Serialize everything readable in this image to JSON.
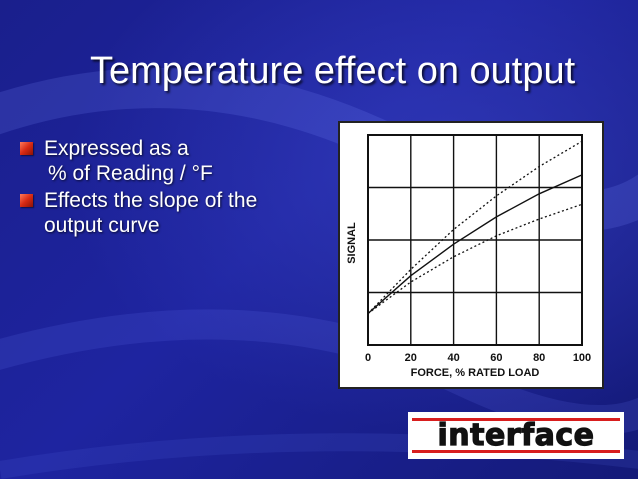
{
  "slide": {
    "title": "Temperature effect on output",
    "bullets": [
      {
        "text": "Expressed as a",
        "bullet": true
      },
      {
        "text": "% of Reading / °F",
        "bullet": false
      },
      {
        "text": "Effects the slope of the",
        "bullet": true
      },
      {
        "text": "output curve",
        "bullet": false
      }
    ],
    "logo_text": "interface",
    "colors": {
      "background": "#1a1f8c",
      "bullet": "#d82a14",
      "logo": "#d81e1e"
    }
  },
  "chart_data": {
    "type": "line",
    "xlabel": "FORCE, % RATED LOAD",
    "ylabel": "SIGNAL",
    "x_ticks": [
      "0",
      "20",
      "40",
      "60",
      "80",
      "100"
    ],
    "xlim": [
      0,
      100
    ],
    "grid": true,
    "series": [
      {
        "style": "dotted",
        "x": [
          0,
          20,
          40,
          60,
          80,
          100
        ],
        "y": [
          0.15,
          0.36,
          0.55,
          0.71,
          0.85,
          0.97
        ]
      },
      {
        "style": "solid",
        "x": [
          0,
          20,
          40,
          60,
          80,
          100
        ],
        "y": [
          0.15,
          0.33,
          0.48,
          0.61,
          0.72,
          0.81
        ]
      },
      {
        "style": "dotted",
        "x": [
          0,
          20,
          40,
          60,
          80,
          100
        ],
        "y": [
          0.15,
          0.3,
          0.42,
          0.52,
          0.6,
          0.67
        ]
      }
    ]
  }
}
